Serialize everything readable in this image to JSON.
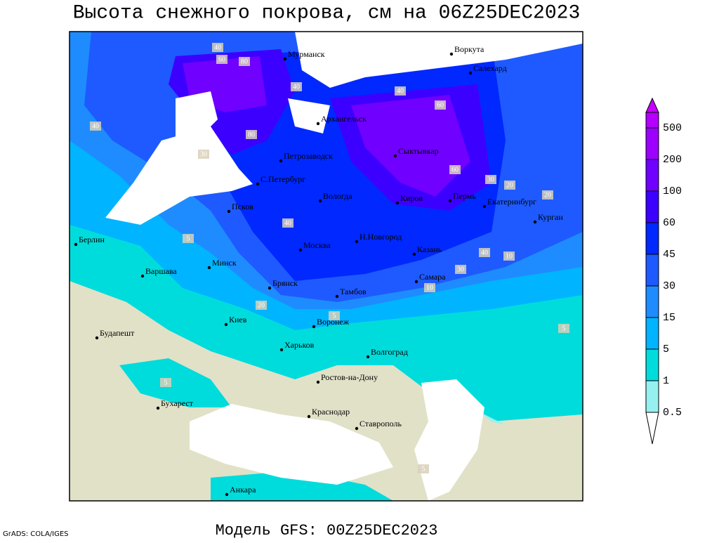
{
  "title": "Высота снежного покрова, см на 06Z25DEC2023",
  "footer": "Модель GFS: 00Z25DEC2023",
  "credit": "GrADS: COLA/IGES",
  "cities": [
    "Мурманск",
    "Воркута",
    "Салехард",
    "Архангельск",
    "Петрозаводск",
    "Сыктывкар",
    "С.Петербург",
    "Вологда",
    "Киров",
    "Пермь",
    "Екатеринбург",
    "Курган",
    "Псков",
    "Берлин",
    "Н.Новгород",
    "Москва",
    "Казань",
    "Минск",
    "Варшава",
    "Самара",
    "Брянск",
    "Тамбов",
    "Киев",
    "Воронеж",
    "Будапешт",
    "Харьков",
    "Волгоград",
    "Ростов-на-Дону",
    "Бухарест",
    "Краснодар",
    "Ставрополь",
    "Анкара"
  ],
  "contour_labels": [
    60,
    80,
    40,
    40,
    80,
    60,
    40,
    30,
    40,
    30,
    20,
    40,
    20,
    10,
    5,
    5,
    5,
    20,
    30,
    10,
    40,
    60,
    5,
    5
  ],
  "legend": {
    "labels": [
      500,
      200,
      100,
      60,
      45,
      30,
      15,
      5,
      1,
      0.5
    ]
  }
}
